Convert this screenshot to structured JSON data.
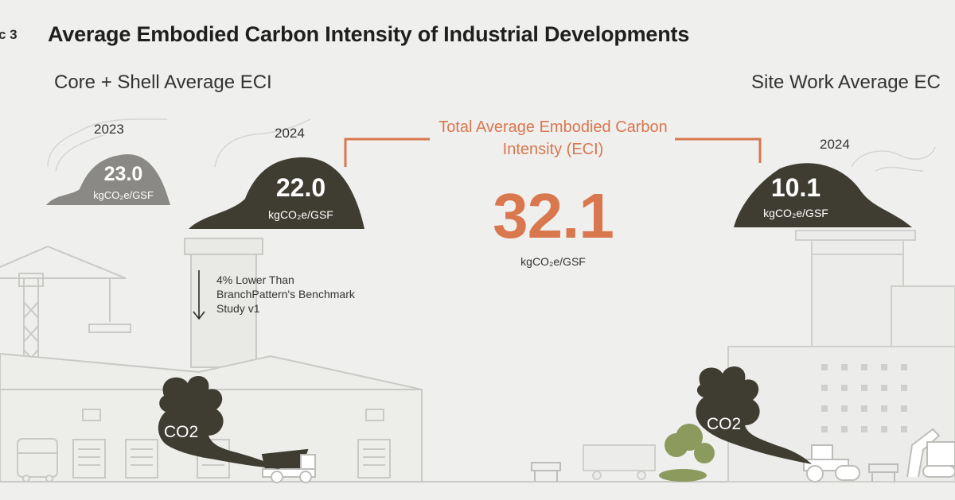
{
  "header": {
    "fig_label": "c 3",
    "title": "Average Embodied Carbon Intensity of Industrial Developments"
  },
  "core_shell": {
    "title": "Core + Shell Average ECI",
    "items": [
      {
        "year": "2023",
        "value": "23.0",
        "unit": "kgCO₂e/GSF"
      },
      {
        "year": "2024",
        "value": "22.0",
        "unit": "kgCO₂e/GSF"
      }
    ],
    "note": "4% Lower Than BranchPattern's Benchmark Study v1"
  },
  "total": {
    "label": "Total Average Embodied Carbon Intensity (ECI)",
    "value": "32.1",
    "unit": "kgCO₂e/GSF"
  },
  "site_work": {
    "title": "Site Work Average EC",
    "year": "2024",
    "value": "10.1",
    "unit": "kgCO₂e/GSF"
  },
  "co2_labels": [
    "CO2",
    "CO2"
  ],
  "colors": {
    "background": "#efefed",
    "accent": "#d9774f",
    "mound_dark": "#3f3d32",
    "mound_light": "#8b8985",
    "line_art": "#c9c9c6",
    "tree": "#8c9a5e"
  },
  "icons": [
    "crane-icon",
    "warehouse-icon",
    "truck-icon",
    "dump-truck-icon",
    "road-roller-icon",
    "excavator-icon",
    "tree-icon",
    "barrier-icon",
    "smoke-icon"
  ]
}
